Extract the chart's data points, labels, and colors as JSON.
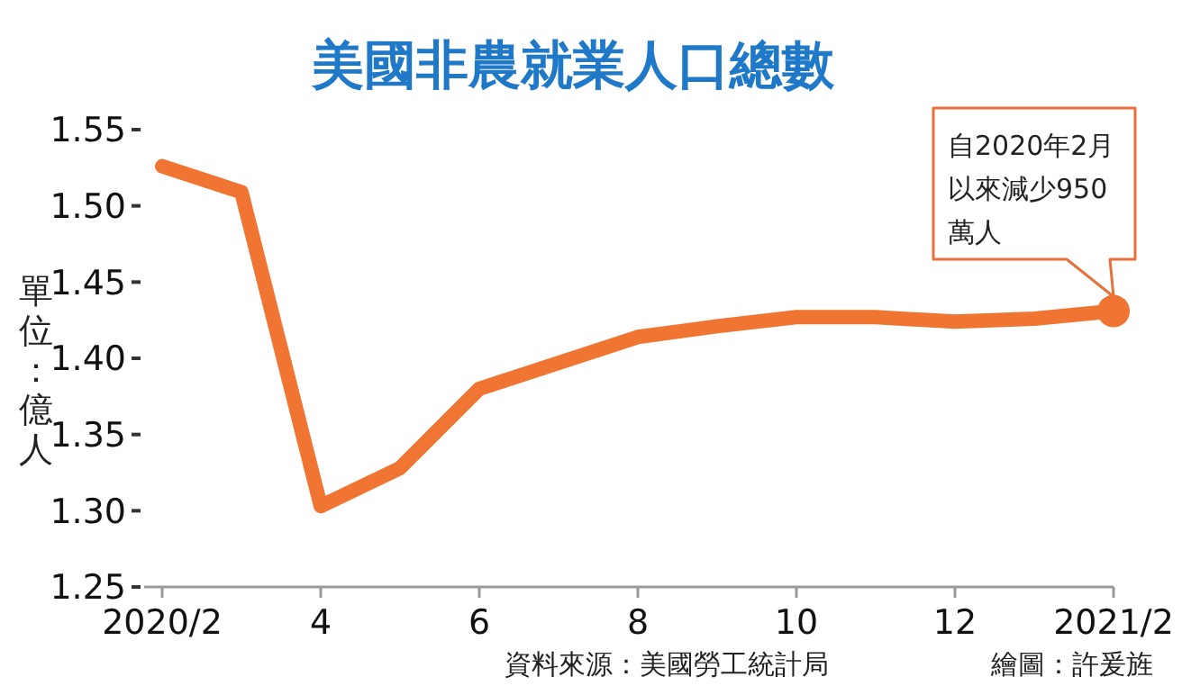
{
  "chart_data": {
    "type": "line",
    "title": "美國非農就業人口總數",
    "ylabel": "單位：億人",
    "categories": [
      "2020/2",
      null,
      "4",
      null,
      "6",
      null,
      "8",
      null,
      "10",
      null,
      "12",
      null,
      "2021/2"
    ],
    "series": [
      {
        "color": "#f07532",
        "values": [
          1.526,
          1.509,
          1.303,
          1.328,
          1.38,
          1.397,
          1.414,
          1.421,
          1.427,
          1.427,
          1.424,
          1.426,
          1.431
        ]
      }
    ],
    "ylim": [
      1.25,
      1.55
    ],
    "yticks": [
      1.25,
      {
        "value": 1.3,
        "label": "1.30"
      },
      1.35,
      {
        "value": 1.4,
        "label": "1.40"
      },
      1.45,
      {
        "value": 1.5,
        "label": "1.50"
      },
      1.55
    ],
    "marker": "none",
    "line_style": "solid",
    "grid": false,
    "annotations": [
      {
        "text": "自2020年2月以來減少950萬人",
        "x": "2021/2",
        "y": 1.431
      },
      "資料來源：美國勞工統計局",
      "繪圖：許爰旌"
    ]
  }
}
